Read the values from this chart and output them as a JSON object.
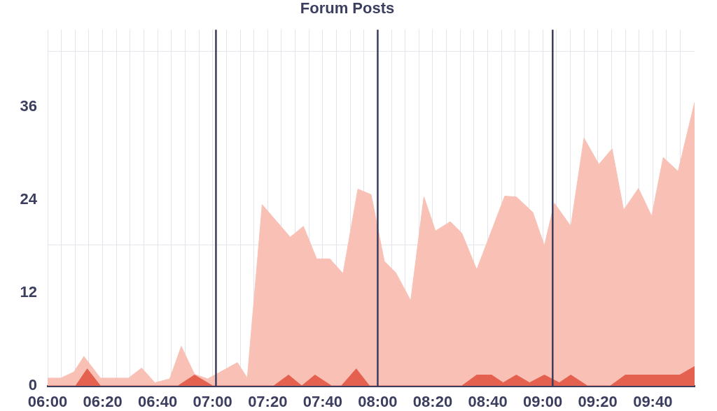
{
  "chart_data": {
    "type": "area",
    "title": "Forum Posts",
    "series": [
      {
        "color": "#f9c1b6",
        "x": [
          6,
          6.08,
          6.16,
          6.22,
          6.32,
          6.49,
          6.57,
          6.65,
          6.74,
          6.81,
          6.89,
          6.97,
          7.15,
          7.21,
          7.3,
          7.47,
          7.55,
          7.63,
          7.71,
          7.79,
          7.88,
          7.96,
          8.04,
          8.11,
          8.2,
          8.28,
          8.35,
          8.44,
          8.51,
          8.6,
          8.77,
          8.84,
          8.94,
          9.01,
          9.07,
          9.17,
          9.25,
          9.34,
          9.42,
          9.49,
          9.58,
          9.66,
          9.73,
          9.82,
          9.92
        ],
        "values": [
          1,
          1,
          1.8,
          3.8,
          1,
          1,
          2.3,
          0.4,
          0.9,
          5.1,
          1.5,
          0.9,
          3.0,
          1.0,
          23.4,
          19.2,
          20.6,
          16.4,
          16.4,
          14.5,
          25.4,
          24.7,
          16.1,
          14.6,
          11.0,
          24.4,
          20.0,
          21.2,
          19.7,
          15.0,
          24.5,
          24.4,
          22.4,
          18.1,
          23.6,
          20.6,
          32.0,
          28.6,
          30.6,
          22.7,
          25.5,
          21.9,
          29.5,
          27.7,
          36.6
        ]
      },
      {
        "color": "#e5614f",
        "x": [
          6,
          6.17,
          6.24,
          6.32,
          6.79,
          6.89,
          7.0,
          7.37,
          7.46,
          7.54,
          7.62,
          7.72,
          7.78,
          7.87,
          7.95,
          8.51,
          8.6,
          8.69,
          8.76,
          8.84,
          8.92,
          9.01,
          9.1,
          9.17,
          9.27,
          9.41,
          9.5,
          9.83,
          9.92
        ],
        "values": [
          0,
          0,
          2.2,
          0,
          0,
          1.4,
          0,
          0,
          1.4,
          0,
          1.4,
          0,
          0,
          2.2,
          0,
          0,
          1.4,
          1.4,
          0.4,
          1.4,
          0.4,
          1.4,
          0.4,
          1.4,
          0,
          0,
          1.4,
          1.4,
          2.5
        ]
      }
    ],
    "xlim": [
      6,
      9.92
    ],
    "xticks": [
      {
        "value": 6,
        "label": "06:00"
      },
      {
        "value": 6.0833,
        "label": null
      },
      {
        "value": 6.1667,
        "label": null
      },
      {
        "value": 6.25,
        "label": null
      },
      {
        "value": 6.3333,
        "label": "06:20"
      },
      {
        "value": 6.4167,
        "label": null
      },
      {
        "value": 6.5,
        "label": null
      },
      {
        "value": 6.5833,
        "label": null
      },
      {
        "value": 6.6667,
        "label": "06:40"
      },
      {
        "value": 6.75,
        "label": null
      },
      {
        "value": 6.8333,
        "label": null
      },
      {
        "value": 6.9167,
        "label": null
      },
      {
        "value": 7,
        "label": "07:00"
      },
      {
        "value": 7.0833,
        "label": null
      },
      {
        "value": 7.1667,
        "label": null
      },
      {
        "value": 7.25,
        "label": null
      },
      {
        "value": 7.3333,
        "label": "07:20"
      },
      {
        "value": 7.4167,
        "label": null
      },
      {
        "value": 7.5,
        "label": null
      },
      {
        "value": 7.5833,
        "label": null
      },
      {
        "value": 7.6667,
        "label": "07:40"
      },
      {
        "value": 7.75,
        "label": null
      },
      {
        "value": 7.8333,
        "label": null
      },
      {
        "value": 7.9167,
        "label": null
      },
      {
        "value": 8,
        "label": "08:00"
      },
      {
        "value": 8.0833,
        "label": null
      },
      {
        "value": 8.1667,
        "label": null
      },
      {
        "value": 8.25,
        "label": null
      },
      {
        "value": 8.3333,
        "label": "08:20"
      },
      {
        "value": 8.4167,
        "label": null
      },
      {
        "value": 8.5,
        "label": null
      },
      {
        "value": 8.5833,
        "label": null
      },
      {
        "value": 8.6667,
        "label": "08:40"
      },
      {
        "value": 8.75,
        "label": null
      },
      {
        "value": 8.8333,
        "label": null
      },
      {
        "value": 8.9167,
        "label": null
      },
      {
        "value": 9,
        "label": "09:00"
      },
      {
        "value": 9.0833,
        "label": null
      },
      {
        "value": 9.1667,
        "label": null
      },
      {
        "value": 9.25,
        "label": null
      },
      {
        "value": 9.3333,
        "label": "09:20"
      },
      {
        "value": 9.4167,
        "label": null
      },
      {
        "value": 9.5,
        "label": null
      },
      {
        "value": 9.5833,
        "label": null
      },
      {
        "value": 9.6667,
        "label": "09:40"
      },
      {
        "value": 9.75,
        "label": null
      },
      {
        "value": 9.8333,
        "label": null
      }
    ],
    "ylim": [
      0,
      46
    ],
    "yticks": [
      0,
      12,
      24,
      36
    ],
    "grid": "x",
    "ref_lines": [
      {
        "axis": "y",
        "value": 18.2,
        "color": "#e3e3eb"
      },
      {
        "axis": "y",
        "value": 43.2,
        "color": "#e3e3eb"
      },
      {
        "axis": "x",
        "value": 7.02,
        "color": "#3b3d5e"
      },
      {
        "axis": "x",
        "value": 8,
        "color": "#3b3d5e"
      },
      {
        "axis": "x",
        "value": 9.06,
        "color": "#3b3d5e"
      }
    ]
  }
}
